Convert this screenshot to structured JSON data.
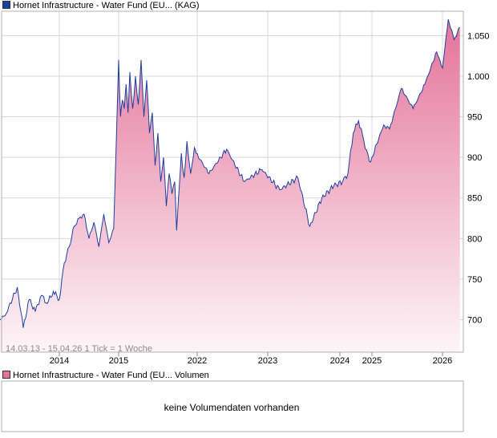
{
  "legend_main": {
    "name": "Hornet Infrastructure - Water Fund (EU...",
    "suffix": "(KAG)"
  },
  "legend_volume": {
    "name": "Hornet Infrastructure - Water Fund (EU...",
    "suffix": "Volumen"
  },
  "range_label": "14.03.13 - 15.04.26   1 Tick = 1 Woche",
  "volume_message": "keine Volumendaten vorhanden",
  "colors": {
    "line": "#1f3fa0",
    "fill_top": "#e4749a",
    "fill_bottom": "#fdf4f8",
    "grid": "#d8d8d8",
    "frame": "#b0b0b0"
  },
  "chart_data": {
    "type": "area",
    "scale": "linear",
    "ylim": [
      660,
      1080
    ],
    "y_ticks": [
      700,
      750,
      800,
      850,
      900,
      950,
      1000,
      1050
    ],
    "y_tick_labels": [
      "700",
      "750",
      "800",
      "850",
      "900",
      "950",
      "1.000",
      "1.050"
    ],
    "x_ticks": [
      "2014",
      "2015",
      "2022",
      "2023",
      "2024",
      "2025",
      "2026"
    ],
    "grid": true,
    "series": [
      {
        "x": [
          "2013-03",
          "2013-04",
          "2013-06",
          "2013-07",
          "2013-08",
          "2013-09",
          "2013-10",
          "2013-11",
          "2013-12",
          "2014-01",
          "2014-02",
          "2014-03",
          "2014-04",
          "2014-05",
          "2014-06",
          "2014-07",
          "2014-08",
          "2014-09",
          "2014-10",
          "2014-11",
          "2014-12",
          "2015-01",
          "2015-02",
          "2015-03",
          "2015-05",
          "2015-07",
          "2015-09",
          "2015-11",
          "2016-01",
          "2016-04",
          "2016-07",
          "2016-10",
          "2017-01",
          "2017-04",
          "2017-07",
          "2017-10",
          "2018-01",
          "2018-04",
          "2018-07",
          "2018-10",
          "2019-01",
          "2019-04",
          "2019-07",
          "2019-10",
          "2020-01",
          "2020-03",
          "2020-05",
          "2020-08",
          "2020-11",
          "2021-02",
          "2021-06",
          "2021-10",
          "2021-12",
          "2022-03",
          "2022-06",
          "2022-09",
          "2022-12",
          "2023-03",
          "2023-06",
          "2023-08",
          "2023-10",
          "2023-12",
          "2024-02",
          "2024-04",
          "2024-06",
          "2024-08",
          "2024-10",
          "2024-12",
          "2025-01",
          "2025-03",
          "2025-04",
          "2025-06",
          "2025-08",
          "2025-10",
          "2025-12",
          "2026-01",
          "2026-02",
          "2026-03",
          "2026-04"
        ],
        "y": [
          700,
          705,
          740,
          690,
          725,
          710,
          730,
          720,
          735,
          725,
          770,
          790,
          815,
          825,
          830,
          800,
          820,
          790,
          830,
          795,
          812,
          1020,
          980,
          950,
          970,
          960,
          990,
          955,
          1005,
          960,
          1000,
          965,
          1020,
          950,
          995,
          930,
          955,
          890,
          930,
          870,
          900,
          840,
          880,
          855,
          870,
          810,
          850,
          905,
          875,
          920,
          880,
          912,
          905,
          880,
          910,
          870,
          885,
          860,
          875,
          815,
          850,
          865,
          870,
          880,
          930,
          945,
          920,
          895,
          900,
          940,
          935,
          985,
          960,
          990,
          1030,
          1010,
          1070,
          1045,
          1060
        ]
      }
    ]
  }
}
